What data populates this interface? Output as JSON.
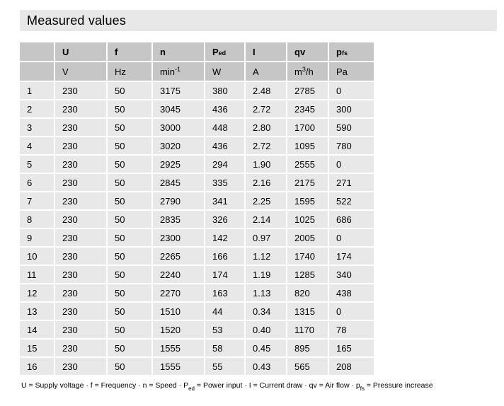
{
  "title": "Measured values",
  "table": {
    "columns": [
      {
        "name": "U",
        "symbol": [
          {
            "t": "U"
          }
        ],
        "unit": [
          {
            "t": "V"
          }
        ]
      },
      {
        "name": "f",
        "symbol": [
          {
            "t": "f"
          }
        ],
        "unit": [
          {
            "t": "Hz"
          }
        ]
      },
      {
        "name": "n",
        "symbol": [
          {
            "t": "n"
          }
        ],
        "unit": [
          {
            "t": "min"
          },
          {
            "sup": "-1"
          }
        ]
      },
      {
        "name": "Ped",
        "symbol": [
          {
            "t": "P"
          },
          {
            "sub": "ed"
          }
        ],
        "unit": [
          {
            "t": "W"
          }
        ]
      },
      {
        "name": "I",
        "symbol": [
          {
            "t": "I"
          }
        ],
        "unit": [
          {
            "t": "A"
          }
        ]
      },
      {
        "name": "qv",
        "symbol": [
          {
            "t": "qv"
          }
        ],
        "unit": [
          {
            "t": "m"
          },
          {
            "sup": "3"
          },
          {
            "t": "/h"
          }
        ]
      },
      {
        "name": "pfs",
        "symbol": [
          {
            "t": "p"
          },
          {
            "sub": "fs"
          }
        ],
        "unit": [
          {
            "t": "Pa"
          }
        ]
      }
    ],
    "rows": [
      {
        "no": "1",
        "values": [
          "230",
          "50",
          "3175",
          "380",
          "2.48",
          "2785",
          "0"
        ]
      },
      {
        "no": "2",
        "values": [
          "230",
          "50",
          "3045",
          "436",
          "2.72",
          "2345",
          "300"
        ]
      },
      {
        "no": "3",
        "values": [
          "230",
          "50",
          "3000",
          "448",
          "2.80",
          "1700",
          "590"
        ]
      },
      {
        "no": "4",
        "values": [
          "230",
          "50",
          "3020",
          "436",
          "2.72",
          "1095",
          "780"
        ]
      },
      {
        "no": "5",
        "values": [
          "230",
          "50",
          "2925",
          "294",
          "1.90",
          "2555",
          "0"
        ]
      },
      {
        "no": "6",
        "values": [
          "230",
          "50",
          "2845",
          "335",
          "2.16",
          "2175",
          "271"
        ]
      },
      {
        "no": "7",
        "values": [
          "230",
          "50",
          "2790",
          "341",
          "2.25",
          "1595",
          "522"
        ]
      },
      {
        "no": "8",
        "values": [
          "230",
          "50",
          "2835",
          "326",
          "2.14",
          "1025",
          "686"
        ]
      },
      {
        "no": "9",
        "values": [
          "230",
          "50",
          "2300",
          "142",
          "0.97",
          "2005",
          "0"
        ]
      },
      {
        "no": "10",
        "values": [
          "230",
          "50",
          "2265",
          "166",
          "1.12",
          "1740",
          "174"
        ]
      },
      {
        "no": "11",
        "values": [
          "230",
          "50",
          "2240",
          "174",
          "1.19",
          "1285",
          "340"
        ]
      },
      {
        "no": "12",
        "values": [
          "230",
          "50",
          "2270",
          "163",
          "1.13",
          "820",
          "438"
        ]
      },
      {
        "no": "13",
        "values": [
          "230",
          "50",
          "1510",
          "44",
          "0.34",
          "1315",
          "0"
        ]
      },
      {
        "no": "14",
        "values": [
          "230",
          "50",
          "1520",
          "53",
          "0.40",
          "1170",
          "78"
        ]
      },
      {
        "no": "15",
        "values": [
          "230",
          "50",
          "1555",
          "58",
          "0.45",
          "895",
          "165"
        ]
      },
      {
        "no": "16",
        "values": [
          "230",
          "50",
          "1555",
          "55",
          "0.43",
          "565",
          "208"
        ]
      }
    ]
  },
  "legend_parts": [
    {
      "t": "U = Supply voltage · f = Frequency · n = Speed · P"
    },
    {
      "sub": "ed"
    },
    {
      "t": " = Power input · I = Current draw · qv = Air flow · p"
    },
    {
      "sub": "fs"
    },
    {
      "t": " = Pressure increase"
    }
  ],
  "colors": {
    "header_cell_bg": "#c6c6c6",
    "data_cell_bg": "#e8e8e8",
    "title_bar_bg": "#e8e8e8",
    "text": "#000000",
    "page_bg": "#ffffff"
  }
}
